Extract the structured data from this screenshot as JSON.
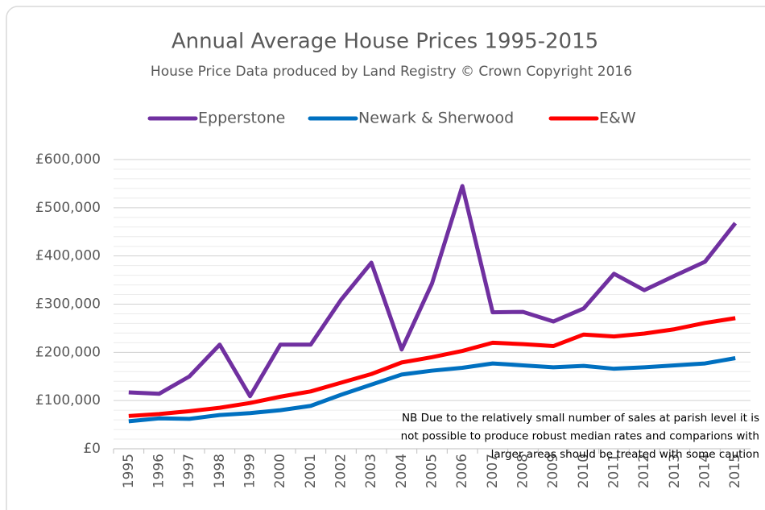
{
  "chart_data": {
    "type": "line",
    "title": "Annual Average House Prices 1995-2015",
    "subtitle": "House Price Data produced by Land Registry © Crown Copyright 2016",
    "categories": [
      "1995",
      "1996",
      "1997",
      "1998",
      "1999",
      "2000",
      "2001",
      "2002",
      "2003",
      "2004",
      "2005",
      "2006",
      "2007",
      "2008",
      "2009",
      "2010",
      "2011",
      "2012",
      "2013",
      "2014",
      "2015"
    ],
    "series": [
      {
        "name": "Epperstone",
        "color": "#7030a0",
        "values": [
          117000,
          114000,
          150000,
          216000,
          109000,
          216000,
          216000,
          309000,
          386000,
          206000,
          343000,
          545000,
          283000,
          284000,
          264000,
          291000,
          363000,
          329000,
          359000,
          388000,
          468000
        ]
      },
      {
        "name": "Newark & Sherwood",
        "color": "#0070c0",
        "values": [
          57000,
          63000,
          62000,
          70000,
          74000,
          80000,
          89000,
          112000,
          133000,
          154000,
          162000,
          168000,
          177000,
          173000,
          169000,
          172000,
          166000,
          169000,
          173000,
          177000,
          188000
        ]
      },
      {
        "name": "E&W",
        "color": "#ff0000",
        "values": [
          68000,
          72000,
          78000,
          85000,
          95000,
          108000,
          119000,
          137000,
          155000,
          179000,
          190000,
          203000,
          220000,
          217000,
          213000,
          237000,
          233000,
          239000,
          248000,
          261000,
          271000
        ]
      }
    ],
    "ylim": [
      0,
      600000
    ],
    "yticks": [
      {
        "value": 0,
        "label": "£0"
      },
      {
        "value": 100000,
        "label": "£100,000"
      },
      {
        "value": 200000,
        "label": "£200,000"
      },
      {
        "value": 300000,
        "label": "£300,000"
      },
      {
        "value": 400000,
        "label": "£400,000"
      },
      {
        "value": 500000,
        "label": "£500,000"
      },
      {
        "value": 600000,
        "label": "£600,000"
      }
    ],
    "minor_yticks": [
      20000,
      40000,
      60000,
      80000,
      120000,
      140000,
      160000,
      180000,
      220000,
      240000,
      260000,
      280000,
      320000,
      340000,
      360000,
      380000,
      420000,
      440000,
      460000,
      480000,
      520000,
      540000,
      560000,
      580000
    ],
    "grid": true,
    "legend": "top",
    "annotation": [
      "NB Due to the relatively small number of sales at parish level it is",
      "not possible to produce robust median rates and comparions with",
      "larger areas should be treated with some caution"
    ]
  }
}
